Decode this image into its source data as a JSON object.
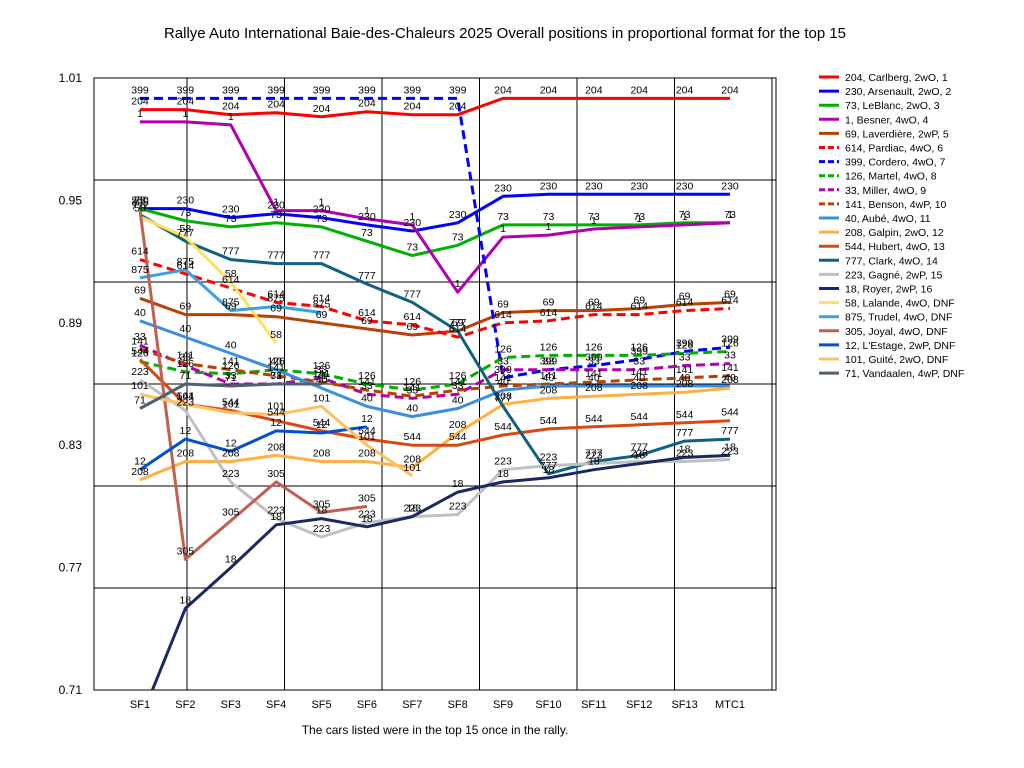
{
  "chart_data": {
    "type": "line",
    "title": "Rallye Auto International Baie-des-Chaleurs 2025  Overall positions in proportional format for the top 15",
    "footnote": "The cars listed were in the top 15 once in the rally.",
    "categories": [
      "SF1",
      "SF2",
      "SF3",
      "SF4",
      "SF5",
      "SF6",
      "SF7",
      "SF8",
      "SF9",
      "SF10",
      "SF11",
      "SF12",
      "SF13",
      "MTC1"
    ],
    "y_ticks": [
      "1.01",
      "0.95",
      "0.89",
      "0.83",
      "0.77",
      "0.71"
    ],
    "ylim": [
      0.71,
      1.01
    ],
    "grid": "horizontal and vertical",
    "legend_position": "right",
    "series": [
      {
        "name": "204, Carlberg, 2wO, 1",
        "num": "204",
        "color": "#ff0000",
        "dash": false,
        "values": [
          0.9945,
          0.9945,
          0.992,
          0.993,
          0.991,
          0.9935,
          0.992,
          0.992,
          1.0,
          1.0,
          1.0,
          1.0,
          1.0,
          1.0
        ]
      },
      {
        "name": "230, Arsenault, 2wO, 2",
        "num": "230",
        "color": "#0000ff",
        "dash": false,
        "values": [
          0.946,
          0.946,
          0.9415,
          0.9435,
          0.9415,
          0.938,
          0.935,
          0.939,
          0.952,
          0.953,
          0.953,
          0.953,
          0.953,
          0.953
        ]
      },
      {
        "name": "73, LeBlanc, 2wO, 3",
        "num": "73",
        "color": "#00b000",
        "dash": false,
        "values": [
          0.946,
          0.94,
          0.937,
          0.939,
          0.937,
          0.93,
          0.923,
          0.928,
          0.938,
          0.938,
          0.938,
          0.938,
          0.939,
          0.939
        ]
      },
      {
        "name": "1, Besner, 4wO, 4",
        "num": "1",
        "color": "#b000b0",
        "dash": false,
        "values": [
          0.9885,
          0.9885,
          0.987,
          0.945,
          0.945,
          0.941,
          0.938,
          0.905,
          0.932,
          0.933,
          0.936,
          0.937,
          0.938,
          0.939
        ]
      },
      {
        "name": "69, Laverdière, 2wP, 5",
        "num": "69",
        "color": "#b84000",
        "dash": false,
        "values": [
          0.902,
          0.894,
          0.894,
          0.893,
          0.89,
          0.887,
          0.884,
          0.886,
          0.895,
          0.896,
          0.896,
          0.897,
          0.899,
          0.9
        ]
      },
      {
        "name": "614, Pardiac, 4wO, 6",
        "num": "614",
        "color": "#ff0000",
        "dash": true,
        "values": [
          0.921,
          0.914,
          0.907,
          0.9,
          0.898,
          0.891,
          0.889,
          0.883,
          0.89,
          0.891,
          0.894,
          0.894,
          0.896,
          0.897
        ]
      },
      {
        "name": "399, Cordero, 4wO, 7",
        "num": "399",
        "color": "#0000ff",
        "dash": true,
        "values": [
          1.0,
          1.0,
          1.0,
          1.0,
          1.0,
          1.0,
          1.0,
          1.0,
          0.863,
          0.867,
          0.869,
          0.872,
          0.876,
          0.878
        ]
      },
      {
        "name": "126, Martel, 4wO, 8",
        "num": "126",
        "color": "#00b000",
        "dash": true,
        "values": [
          0.871,
          0.866,
          0.865,
          0.867,
          0.865,
          0.86,
          0.857,
          0.86,
          0.873,
          0.874,
          0.874,
          0.874,
          0.875,
          0.876
        ]
      },
      {
        "name": "33, Miller, 4wO, 9",
        "num": "33",
        "color": "#b000b0",
        "dash": true,
        "values": [
          0.879,
          0.869,
          0.86,
          0.86,
          0.863,
          0.855,
          0.853,
          0.855,
          0.867,
          0.867,
          0.867,
          0.867,
          0.869,
          0.87
        ]
      },
      {
        "name": "141, Benson, 4wP, 10",
        "num": "141",
        "color": "#b84000",
        "dash": true,
        "values": [
          0.877,
          0.87,
          0.867,
          0.864,
          0.861,
          0.857,
          0.854,
          0.857,
          0.859,
          0.86,
          0.861,
          0.862,
          0.863,
          0.864
        ]
      },
      {
        "name": "40, Aubé, 4wO, 11",
        "num": "40",
        "color": "#3a8fe0",
        "dash": false,
        "values": [
          0.891,
          0.883,
          0.875,
          0.867,
          0.858,
          0.849,
          0.844,
          0.848,
          0.857,
          0.859,
          0.859,
          0.859,
          0.859,
          0.859
        ]
      },
      {
        "name": "208, Galpin, 2wO, 12",
        "num": "208",
        "color": "#ffb040",
        "dash": false,
        "values": [
          0.813,
          0.822,
          0.822,
          0.825,
          0.822,
          0.822,
          0.819,
          0.836,
          0.85,
          0.853,
          0.854,
          0.855,
          0.856,
          0.858
        ]
      },
      {
        "name": "544, Hubert, 4wO, 13",
        "num": "544",
        "color": "#d84810",
        "dash": false,
        "values": [
          0.872,
          0.85,
          0.847,
          0.842,
          0.837,
          0.833,
          0.83,
          0.83,
          0.835,
          0.838,
          0.839,
          0.84,
          0.841,
          0.842
        ]
      },
      {
        "name": "777, Clark, 4wO, 14",
        "num": "777",
        "color": "#106080",
        "dash": false,
        "values": [
          0.943,
          0.93,
          0.921,
          0.919,
          0.919,
          0.909,
          0.9,
          0.886,
          0.849,
          0.816,
          0.822,
          0.825,
          0.832,
          0.833
        ]
      },
      {
        "name": "223, Gagné, 2wP, 15",
        "num": "223",
        "color": "#c0c0c0",
        "dash": false,
        "values": [
          0.862,
          0.847,
          0.812,
          0.794,
          0.785,
          0.792,
          0.795,
          0.796,
          0.818,
          0.82,
          0.821,
          0.822,
          0.822,
          0.823
        ]
      },
      {
        "name": "18, Royer, 2wP, 16",
        "num": "18",
        "color": "#1a2a60",
        "dash": false,
        "values": [
          0.695,
          0.75,
          0.77,
          0.791,
          0.794,
          0.79,
          0.795,
          0.807,
          0.812,
          0.814,
          0.818,
          0.821,
          0.824,
          0.825
        ]
      },
      {
        "name": "58, Lalande, 4wO, DNF",
        "num": "58",
        "color": "#ffe060",
        "dash": false,
        "values": [
          0.942,
          0.932,
          0.91,
          0.88,
          null,
          null,
          null,
          null,
          null,
          null,
          null,
          null,
          null,
          null
        ]
      },
      {
        "name": "875, Trudel, 4wO, DNF",
        "num": "875",
        "color": "#3aa0e0",
        "dash": false,
        "values": [
          0.912,
          0.916,
          0.896,
          0.898,
          0.895,
          null,
          null,
          null,
          null,
          null,
          null,
          null,
          null,
          null
        ]
      },
      {
        "name": "305, Joyal, 4wO, DNF",
        "num": "305",
        "color": "#c06050",
        "dash": false,
        "values": [
          0.945,
          0.774,
          0.793,
          0.812,
          0.797,
          0.8,
          null,
          null,
          null,
          null,
          null,
          null,
          null,
          null
        ]
      },
      {
        "name": "12, L'Estage, 2wP, DNF",
        "num": "12",
        "color": "#0050d0",
        "dash": false,
        "values": [
          0.818,
          0.833,
          0.827,
          0.837,
          0.836,
          0.839,
          null,
          null,
          null,
          null,
          null,
          null,
          null,
          null
        ]
      },
      {
        "name": "101, Guité, 2wO, DNF",
        "num": "101",
        "color": "#ffc060",
        "dash": false,
        "values": [
          0.855,
          0.85,
          0.846,
          0.845,
          0.849,
          0.83,
          0.815,
          null,
          null,
          null,
          null,
          null,
          null,
          null
        ]
      },
      {
        "name": "71, Vandaalen, 4wP, DNF",
        "num": "71",
        "color": "#506070",
        "dash": false,
        "values": [
          0.848,
          0.86,
          0.859,
          0.86,
          0.86,
          null,
          null,
          null,
          null,
          null,
          null,
          null,
          null,
          null
        ]
      }
    ]
  }
}
